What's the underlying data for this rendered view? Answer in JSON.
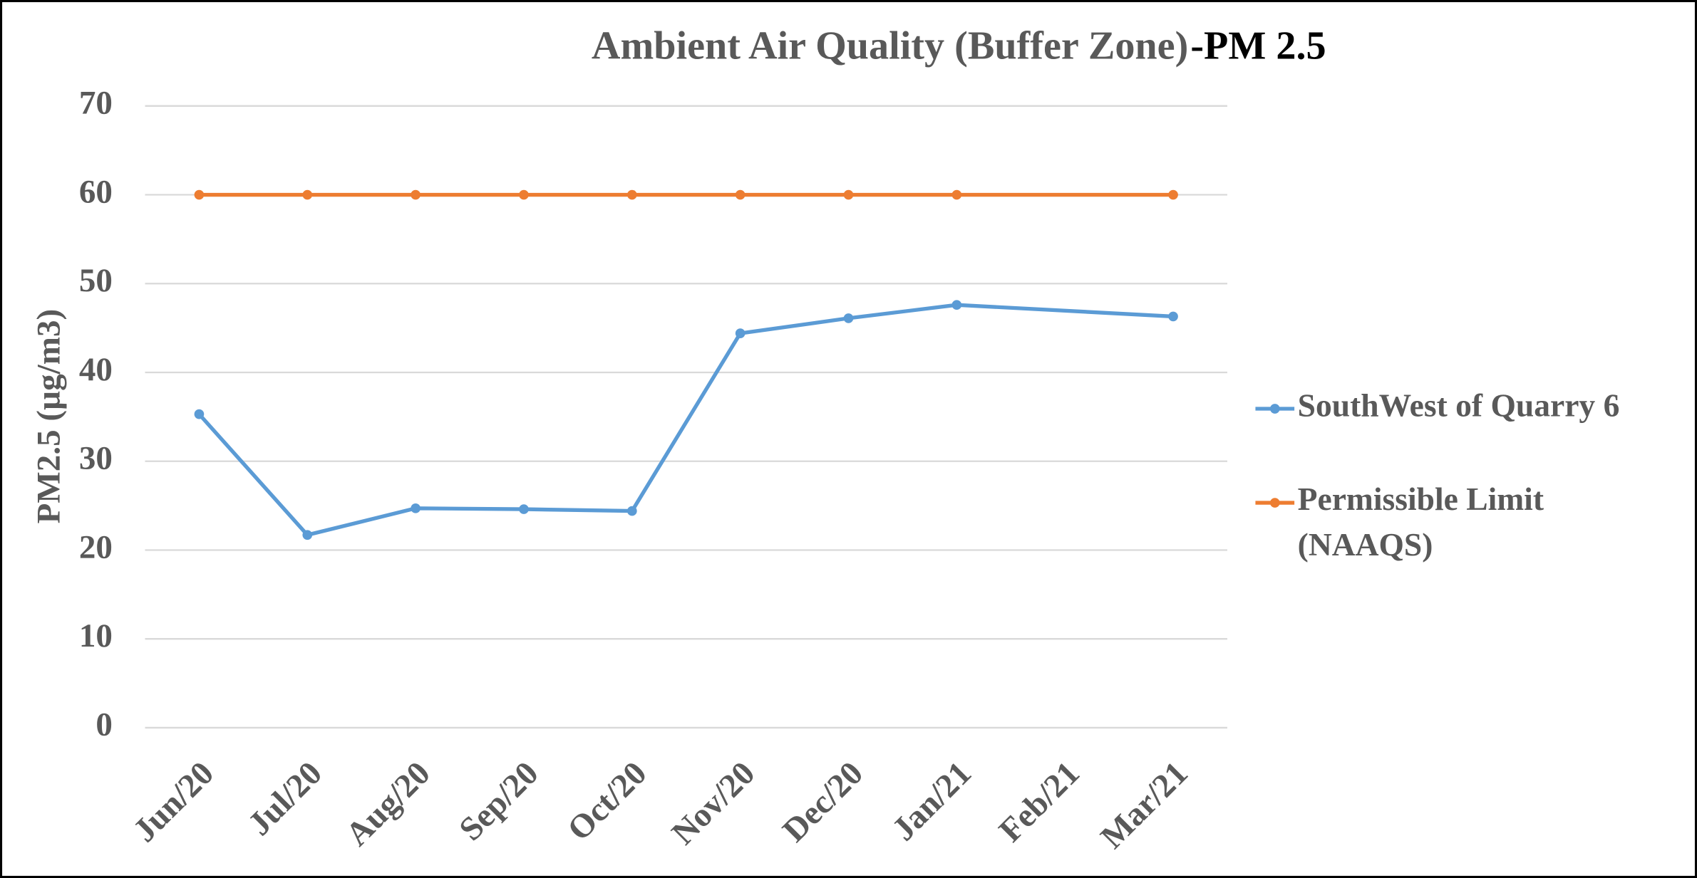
{
  "chart_data": {
    "type": "line",
    "title": "Ambient Air Quality (Buffer Zone)",
    "title_suffix": "-PM 2.5",
    "y_label": "PM2.5 (µg/m3)",
    "categories": [
      "Jun/20",
      "Jul/20",
      "Aug/20",
      "Sep/20",
      "Oct/20",
      "Nov/20",
      "Dec/20",
      "Jan/21",
      "Feb/21",
      "Mar/21"
    ],
    "series": [
      {
        "name": "SouthWest of Quarry 6",
        "color": "#5b9bd5",
        "values": [
          35.3,
          21.7,
          24.7,
          24.6,
          24.4,
          44.4,
          46.1,
          47.6,
          null,
          46.3
        ]
      },
      {
        "name": "Permissible Limit (NAAQS)",
        "color": "#ed7d31",
        "values": [
          60,
          60,
          60,
          60,
          60,
          60,
          60,
          60,
          null,
          60
        ]
      }
    ],
    "ylim": [
      0,
      70
    ],
    "yticks": [
      0,
      10,
      20,
      30,
      40,
      50,
      60,
      70
    ],
    "grid": true,
    "connect_gaps": true,
    "legend": "right"
  }
}
